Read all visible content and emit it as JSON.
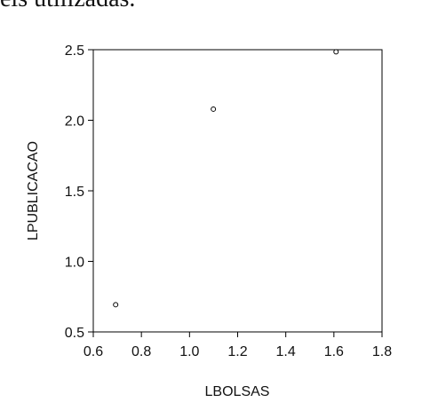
{
  "page": {
    "top_text_fragment": "eis utilizadas."
  },
  "chart_data": {
    "type": "scatter",
    "xlabel": "LBOLSAS",
    "ylabel": "LPUBLICACAO",
    "xlim": [
      0.6,
      1.8
    ],
    "ylim": [
      0.5,
      2.5
    ],
    "x_ticks": [
      0.6,
      0.8,
      1.0,
      1.2,
      1.4,
      1.6,
      1.8
    ],
    "x_tick_labels": [
      "0.6",
      "0.8",
      "1.0",
      "1.2",
      "1.4",
      "1.6",
      "1.8"
    ],
    "y_ticks": [
      0.5,
      1.0,
      1.5,
      2.0,
      2.5
    ],
    "y_tick_labels": [
      "0.5",
      "1.0",
      "1.5",
      "2.0",
      "2.5"
    ],
    "grid": false,
    "marker": "open-circle",
    "series": [
      {
        "x": [
          0.693,
          1.099,
          1.609
        ],
        "y": [
          0.693,
          2.079,
          2.485
        ]
      }
    ]
  }
}
